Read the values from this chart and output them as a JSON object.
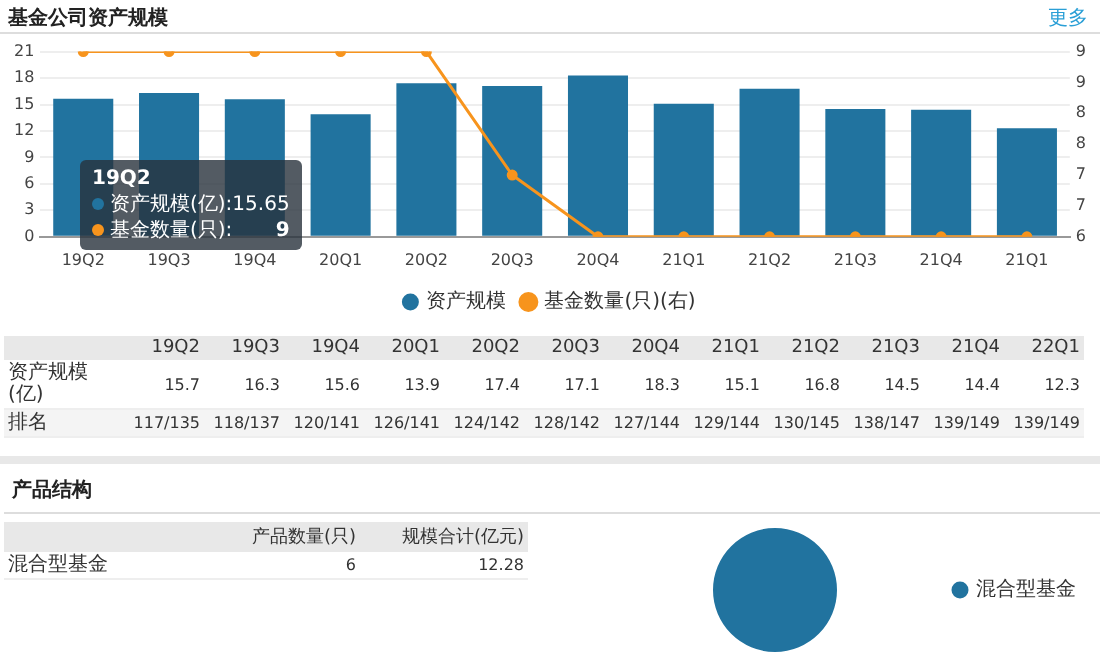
{
  "chart_data": [
    {
      "type": "bar",
      "title": "基金公司资产规模",
      "annotations": [
        "更多",
        "19Q2",
        "资产规模(亿):15.65",
        "基金数量(只):",
        "9"
      ],
      "categories": [
        "19Q2",
        "19Q3",
        "19Q4",
        "20Q1",
        "20Q2",
        "20Q3",
        "20Q4",
        "21Q1",
        "21Q2",
        "21Q3",
        "21Q4",
        "21Q1"
      ],
      "series": [
        {
          "name": "资产规模",
          "type": "bar",
          "color": "#21739f",
          "values": [
            15.65,
            16.3,
            15.6,
            13.9,
            17.4,
            17.1,
            18.3,
            15.1,
            16.8,
            14.5,
            14.4,
            12.3
          ]
        },
        {
          "name": "基金数量(只)(右)",
          "type": "line",
          "axis": "y2",
          "color": "#f7941d",
          "values": [
            9,
            9,
            9,
            9,
            9,
            7,
            6,
            6,
            6,
            6,
            6,
            6
          ]
        }
      ],
      "ylim": [
        0,
        21
      ],
      "yticks": [
        0,
        3,
        6,
        9,
        12,
        15,
        18,
        21
      ],
      "y2lim": [
        6,
        9
      ],
      "y2ticks": [
        6,
        {
          "value": 6.5,
          "label": "7"
        },
        7,
        {
          "value": 7.5,
          "label": "8"
        },
        8,
        {
          "value": 8.5,
          "label": "9"
        },
        9
      ],
      "grid": "y",
      "legend": "bottom",
      "marker": "circle"
    },
    {
      "type": "other",
      "categories": [
        "19Q2",
        "19Q3",
        "19Q4",
        "20Q1",
        "20Q2",
        "20Q3",
        "20Q4",
        "21Q1",
        "21Q2",
        "21Q3",
        "21Q4",
        "22Q1"
      ],
      "y_categories": [
        "资产规模(亿)",
        "排名"
      ],
      "cell_labels": [
        [
          "15.7",
          "16.3",
          "15.6",
          "13.9",
          "17.4",
          "17.1",
          "18.3",
          "15.1",
          "16.8",
          "14.5",
          "14.4",
          "12.3"
        ],
        [
          "117/135",
          "118/137",
          "120/141",
          "126/141",
          "124/142",
          "128/142",
          "127/144",
          "129/144",
          "130/145",
          "138/147",
          "139/149",
          "139/149"
        ]
      ]
    },
    {
      "type": "other",
      "title": "产品结构",
      "categories": [
        "产品数量(只)",
        "规模合计(亿元)"
      ],
      "y_categories": [
        "混合型基金"
      ],
      "cell_labels": [
        [
          "6",
          "12.28"
        ]
      ]
    },
    {
      "type": "pie",
      "categories": [
        "混合型基金"
      ],
      "values": [
        100
      ],
      "colors": [
        "#21739f"
      ],
      "legend": "right"
    }
  ]
}
